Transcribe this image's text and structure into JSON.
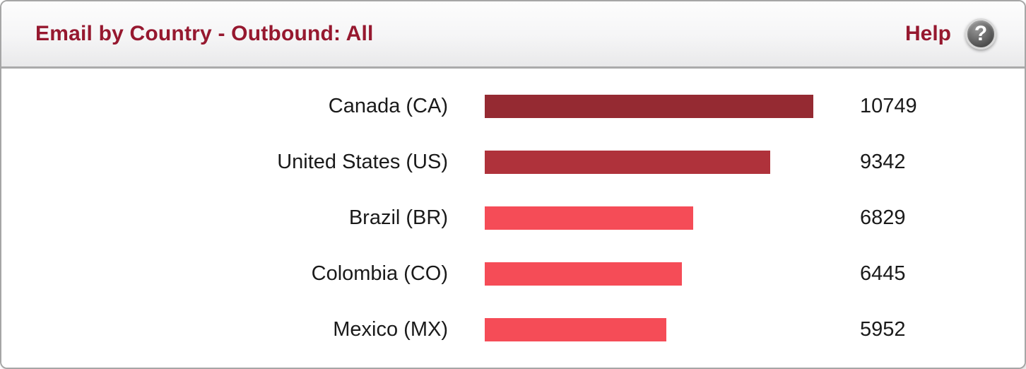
{
  "header": {
    "title": "Email by Country - Outbound: All",
    "help_label": "Help",
    "help_icon_glyph": "?",
    "title_color": "#96182f"
  },
  "chart_data": {
    "type": "bar",
    "orientation": "horizontal",
    "title": "Email by Country - Outbound: All",
    "xlabel": "",
    "ylabel": "",
    "grid": false,
    "legend": false,
    "max_value": 10749,
    "categories": [
      "Canada (CA)",
      "United States (US)",
      "Brazil (BR)",
      "Colombia (CO)",
      "Mexico (MX)"
    ],
    "values": [
      10749,
      9342,
      6829,
      6445,
      5952
    ],
    "value_labels": [
      "10749",
      "9342",
      "6829",
      "6445",
      "5952"
    ],
    "bar_colors": [
      "#952a32",
      "#af323b",
      "#f54c57",
      "#f54c57",
      "#f54c57"
    ]
  }
}
